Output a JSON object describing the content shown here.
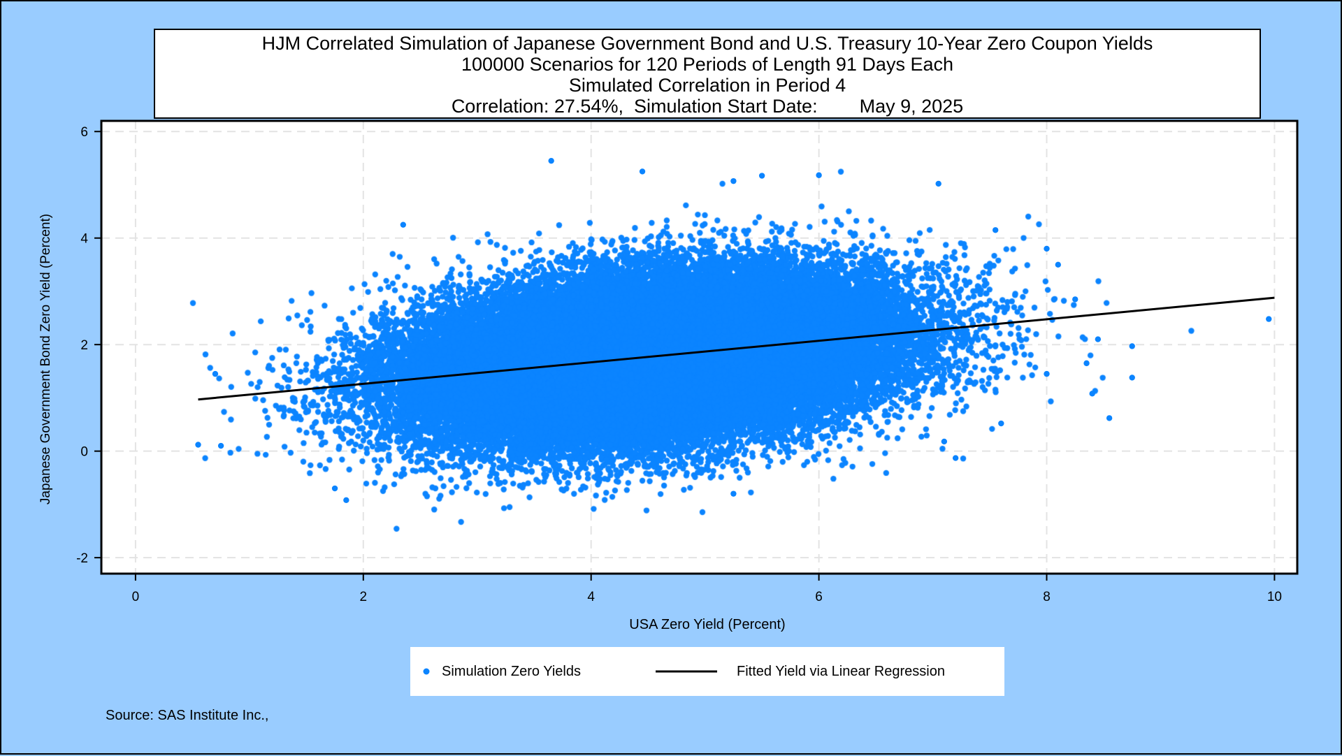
{
  "chart_data": {
    "type": "scatter",
    "title_lines": [
      "HJM Correlated Simulation of Japanese Government Bond and U.S. Treasury 10-Year Zero Coupon Yields",
      "100000 Scenarios for 120 Periods of Length 91 Days Each",
      "Simulated Correlation in Period 4",
      "Correlation: 27.54%,  Simulation Start Date:        May 9, 2025"
    ],
    "xlabel": "USA Zero Yield (Percent)",
    "ylabel": "Japanese Government Bond Zero Yield (Percent)",
    "xlim": [
      -0.3,
      10.2
    ],
    "ylim": [
      -2.3,
      6.2
    ],
    "xticks": [
      0,
      2,
      4,
      6,
      8,
      10
    ],
    "yticks": [
      -2,
      0,
      2,
      4,
      6
    ],
    "grid": true,
    "legend_position": "bottom",
    "point_color": "#0b84ff",
    "line_color": "#000000",
    "series": [
      {
        "name": "Simulation Zero Yields",
        "kind": "scatter",
        "distribution": {
          "n": 100000,
          "mean_x": 4.5,
          "mean_y": 1.75,
          "sd_x": 1.0,
          "sd_y": 0.75,
          "correlation": 0.2754
        },
        "points": [
          {
            "x": 3.65,
            "y": 5.45
          },
          {
            "x": 4.45,
            "y": 5.25
          },
          {
            "x": 5.5,
            "y": 5.17
          },
          {
            "x": 6.0,
            "y": 5.18
          },
          {
            "x": 5.25,
            "y": 5.07
          },
          {
            "x": 7.05,
            "y": 5.02
          },
          {
            "x": 2.35,
            "y": 4.25
          },
          {
            "x": 7.55,
            "y": 4.15
          },
          {
            "x": 8.0,
            "y": 3.8
          },
          {
            "x": 8.1,
            "y": 3.5
          },
          {
            "x": 8.25,
            "y": 2.85
          },
          {
            "x": 8.45,
            "y": 2.1
          },
          {
            "x": 8.75,
            "y": 1.97
          },
          {
            "x": 8.75,
            "y": 1.38
          },
          {
            "x": 8.35,
            "y": 1.65
          },
          {
            "x": 8.4,
            "y": 1.08
          },
          {
            "x": 8.55,
            "y": 0.62
          },
          {
            "x": 9.95,
            "y": 2.48
          },
          {
            "x": 7.2,
            "y": -0.13
          },
          {
            "x": 7.1,
            "y": 0.18
          },
          {
            "x": 0.55,
            "y": 0.12
          },
          {
            "x": 0.75,
            "y": 0.1
          },
          {
            "x": 0.7,
            "y": 1.45
          },
          {
            "x": 1.85,
            "y": -0.92
          },
          {
            "x": 1.75,
            "y": -0.7
          },
          {
            "x": 5.25,
            "y": -0.8
          },
          {
            "x": 7.6,
            "y": 0.52
          },
          {
            "x": 8.0,
            "y": 1.45
          }
        ]
      },
      {
        "name": "Fitted Yield via Linear Regression",
        "kind": "line",
        "x": [
          0.55,
          10.0
        ],
        "y": [
          0.97,
          2.88
        ]
      }
    ]
  },
  "source_note": "Source: SAS Institute Inc.,"
}
